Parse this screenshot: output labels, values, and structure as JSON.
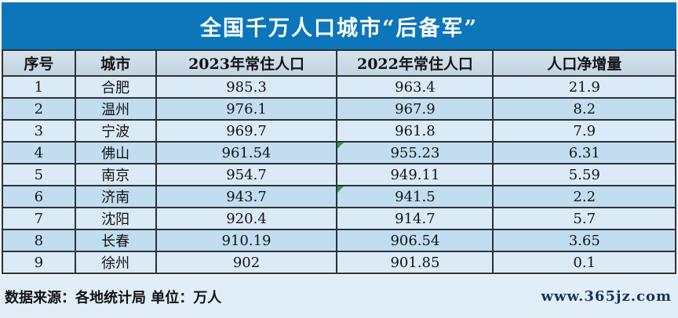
{
  "title": "全国千万人口城市“后备军”",
  "chart_data": {
    "type": "table",
    "title": "全国千万人口城市“后备军”",
    "columns": [
      "序号",
      "城市",
      "2023年常住人口",
      "2022年常住人口",
      "人口净增量"
    ],
    "rows": [
      [
        "1",
        "合肥",
        "985.3",
        "963.4",
        "21.9"
      ],
      [
        "2",
        "温州",
        "976.1",
        "967.9",
        "8.2"
      ],
      [
        "3",
        "宁波",
        "969.7",
        "961.8",
        "7.9"
      ],
      [
        "4",
        "佛山",
        "961.54",
        "955.23",
        "6.31"
      ],
      [
        "5",
        "南京",
        "954.7",
        "949.11",
        "5.59"
      ],
      [
        "6",
        "济南",
        "943.7",
        "941.5",
        "2.2"
      ],
      [
        "7",
        "沈阳",
        "920.4",
        "914.7",
        "5.7"
      ],
      [
        "8",
        "长春",
        "910.19",
        "906.54",
        "3.65"
      ],
      [
        "9",
        "徐州",
        "902",
        "901.85",
        "0.1"
      ]
    ],
    "unit_note": "单位：万人",
    "source_note": "数据来源：各地统计局",
    "cell_indicators": [
      {
        "row_index": 3,
        "column_index": 3
      },
      {
        "row_index": 5,
        "column_index": 3
      }
    ]
  },
  "footer": {
    "source": "数据来源：各地统计局 单位：万人",
    "site": "www.365jz.com"
  },
  "colors": {
    "title_bar": "#0d75ba",
    "header_row": "#c9d9e7",
    "row_odd": "#dbeaf7",
    "row_even": "#c2ddf0",
    "footer_bg": "#e1eef8",
    "border": "#2d3236",
    "indicator_green": "#2f9e44",
    "title_text": "#ffffff",
    "body_text": "#141414",
    "watermark_text": "#16355f"
  }
}
